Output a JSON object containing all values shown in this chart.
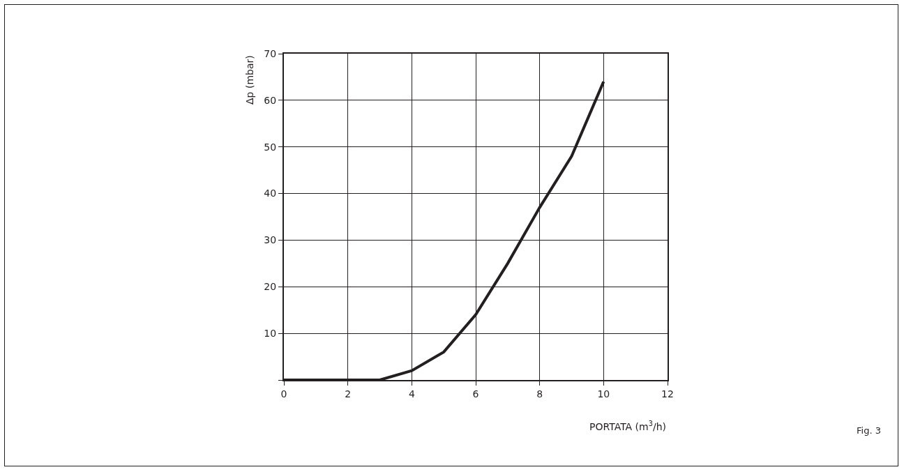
{
  "chart_data": {
    "type": "line",
    "xlabel": "PORTATA (m$^{3}$/h)",
    "ylabel": "Δp (mbar)",
    "x": [
      0,
      3,
      4,
      5,
      6,
      7,
      8,
      9,
      10
    ],
    "series": [
      {
        "color": "#231f20",
        "values": [
          0,
          0,
          2,
          6,
          14,
          25,
          37,
          48,
          64
        ]
      }
    ],
    "xlim": [
      0,
      12
    ],
    "xticks": [
      0,
      2,
      4,
      6,
      8,
      10,
      12
    ],
    "ylim": [
      0,
      70
    ],
    "yticks": [
      {
        "value": 0,
        "label": null
      },
      10,
      20,
      30,
      40,
      50,
      60,
      70
    ],
    "grid": true,
    "marker": "none",
    "line_style": "solid",
    "annotations": [
      "Fig. 3"
    ]
  }
}
